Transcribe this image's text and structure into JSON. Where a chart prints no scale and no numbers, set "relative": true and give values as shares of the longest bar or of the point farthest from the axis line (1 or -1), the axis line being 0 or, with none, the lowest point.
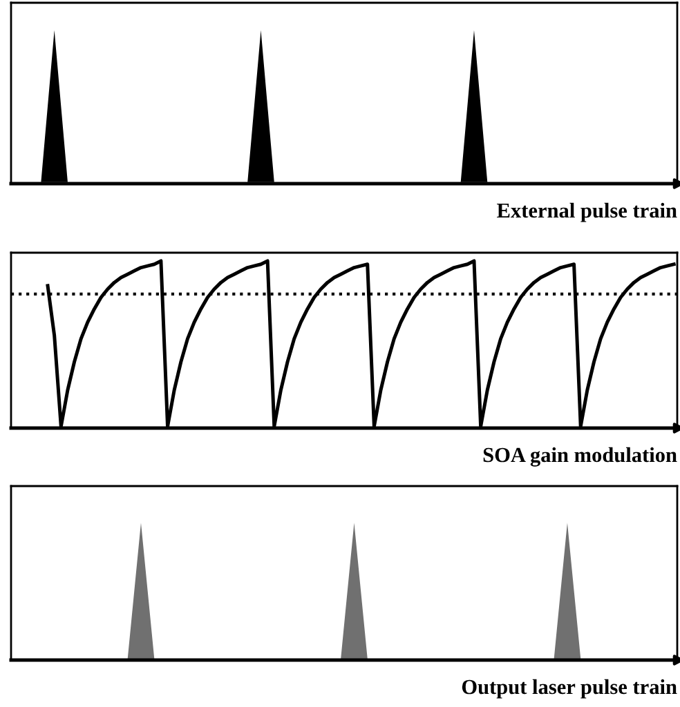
{
  "chart_data": [
    {
      "type": "area",
      "xlabel": "External pulse train",
      "relative": true,
      "categories": [
        null,
        null,
        null,
        null,
        null,
        null,
        null,
        null,
        null,
        null,
        null,
        null,
        null,
        null,
        null,
        null,
        null,
        null,
        null,
        null,
        null,
        null,
        null,
        null,
        null,
        null,
        null,
        null,
        null,
        null,
        null,
        null,
        null,
        null,
        null,
        null,
        null,
        null,
        null,
        null,
        null,
        null,
        null,
        null,
        null,
        null,
        null,
        null,
        null,
        null,
        null,
        null,
        null,
        null,
        null,
        null,
        null,
        null,
        null,
        null,
        null,
        null,
        null,
        null,
        null,
        null,
        null,
        null,
        null,
        null,
        null,
        null,
        null,
        null,
        null,
        null,
        null,
        null,
        null,
        null,
        null,
        null,
        null,
        null,
        null,
        null,
        null,
        null,
        null,
        null,
        null,
        null,
        null,
        null,
        null,
        null,
        null,
        null,
        null,
        null
      ],
      "series": [
        {
          "color": "#000000",
          "values": [
            0,
            0,
            0,
            0,
            0,
            0.5,
            1,
            0.5,
            0,
            0,
            0,
            0,
            0,
            0,
            0,
            0,
            0,
            0,
            0,
            0,
            0,
            0,
            0,
            0,
            0,
            0,
            0,
            0,
            0,
            0,
            0,
            0,
            0,
            0,
            0,
            0,
            0.5,
            1,
            0.5,
            0,
            0,
            0,
            0,
            0,
            0,
            0,
            0,
            0,
            0,
            0,
            0,
            0,
            0,
            0,
            0,
            0,
            0,
            0,
            0,
            0,
            0,
            0,
            0,
            0,
            0,
            0,
            0,
            0,
            0.5,
            1,
            0.5,
            0,
            0,
            0,
            0,
            0,
            0,
            0,
            0,
            0,
            0,
            0,
            0,
            0,
            0,
            0,
            0,
            0,
            0,
            0,
            0,
            0,
            0,
            0,
            0,
            0,
            0,
            0,
            0,
            0
          ]
        }
      ]
    },
    {
      "type": "line",
      "xlabel": "SOA gain modulation",
      "relative": true,
      "categories": [
        null,
        null,
        null,
        null,
        null,
        null,
        null,
        null,
        null,
        null,
        null,
        null,
        null,
        null,
        null,
        null,
        null,
        null,
        null,
        null,
        null,
        null,
        null,
        null,
        null,
        null,
        null,
        null,
        null,
        null,
        null,
        null,
        null,
        null,
        null,
        null,
        null,
        null,
        null,
        null,
        null,
        null,
        null,
        null,
        null,
        null,
        null,
        null,
        null,
        null,
        null,
        null,
        null,
        null,
        null,
        null,
        null,
        null,
        null,
        null,
        null,
        null,
        null,
        null,
        null,
        null,
        null,
        null,
        null,
        null,
        null,
        null,
        null,
        null,
        null,
        null,
        null,
        null,
        null,
        null,
        null,
        null,
        null,
        null,
        null,
        null,
        null,
        null,
        null,
        null,
        null,
        null,
        null,
        null,
        null,
        null,
        null,
        null,
        null,
        null
      ],
      "ref_lines": [
        {
          "axis": "y",
          "value": 0.8,
          "line_style": "dotted",
          "color": "#000000"
        }
      ],
      "series": [
        {
          "color": "#000000",
          "values": [
            null,
            null,
            null,
            null,
            null,
            0.85,
            0.55,
            0,
            0.22,
            0.39,
            0.53,
            0.63,
            0.71,
            0.78,
            0.83,
            0.87,
            0.9,
            0.92,
            0.94,
            0.96,
            0.97,
            0.98,
            1,
            0,
            0.22,
            0.39,
            0.53,
            0.63,
            0.71,
            0.78,
            0.83,
            0.87,
            0.9,
            0.92,
            0.94,
            0.96,
            0.97,
            0.98,
            1,
            0,
            0.22,
            0.39,
            0.53,
            0.63,
            0.71,
            0.78,
            0.83,
            0.87,
            0.9,
            0.92,
            0.94,
            0.96,
            0.97,
            0.98,
            0,
            0.22,
            0.39,
            0.53,
            0.63,
            0.71,
            0.78,
            0.83,
            0.87,
            0.9,
            0.92,
            0.94,
            0.96,
            0.97,
            0.98,
            1,
            0,
            0.22,
            0.39,
            0.53,
            0.63,
            0.71,
            0.78,
            0.83,
            0.87,
            0.9,
            0.92,
            0.94,
            0.96,
            0.97,
            0.98,
            0,
            0.22,
            0.39,
            0.53,
            0.63,
            0.71,
            0.78,
            0.83,
            0.87,
            0.9,
            0.92,
            0.94,
            0.96,
            0.97,
            0.98
          ]
        }
      ]
    },
    {
      "type": "area",
      "xlabel": "Output laser pulse train",
      "relative": true,
      "categories": [
        null,
        null,
        null,
        null,
        null,
        null,
        null,
        null,
        null,
        null,
        null,
        null,
        null,
        null,
        null,
        null,
        null,
        null,
        null,
        null,
        null,
        null,
        null,
        null,
        null,
        null,
        null,
        null,
        null,
        null,
        null,
        null,
        null,
        null,
        null,
        null,
        null,
        null,
        null,
        null,
        null,
        null,
        null,
        null,
        null,
        null,
        null,
        null,
        null,
        null,
        null,
        null,
        null,
        null,
        null,
        null,
        null,
        null,
        null,
        null,
        null,
        null,
        null,
        null,
        null,
        null,
        null,
        null,
        null,
        null,
        null,
        null,
        null,
        null,
        null,
        null,
        null,
        null,
        null,
        null,
        null,
        null,
        null,
        null,
        null,
        null,
        null,
        null,
        null,
        null,
        null,
        null,
        null,
        null,
        null,
        null,
        null,
        null,
        null,
        null
      ],
      "series": [
        {
          "color": "#707070",
          "values": [
            0,
            0,
            0,
            0,
            0,
            0,
            0,
            0,
            0,
            0,
            0,
            0,
            0,
            0,
            0,
            0,
            0,
            0,
            0.5,
            1,
            0.5,
            0,
            0,
            0,
            0,
            0,
            0,
            0,
            0,
            0,
            0,
            0,
            0,
            0,
            0,
            0,
            0,
            0,
            0,
            0,
            0,
            0,
            0,
            0,
            0,
            0,
            0,
            0,
            0,
            0,
            0.5,
            1,
            0.5,
            0,
            0,
            0,
            0,
            0,
            0,
            0,
            0,
            0,
            0,
            0,
            0,
            0,
            0,
            0,
            0,
            0,
            0,
            0,
            0,
            0,
            0,
            0,
            0,
            0,
            0,
            0,
            0,
            0,
            0.5,
            1,
            0.5,
            0,
            0,
            0,
            0,
            0,
            0,
            0,
            0,
            0,
            0,
            0,
            0,
            0,
            0,
            0
          ]
        }
      ]
    }
  ]
}
